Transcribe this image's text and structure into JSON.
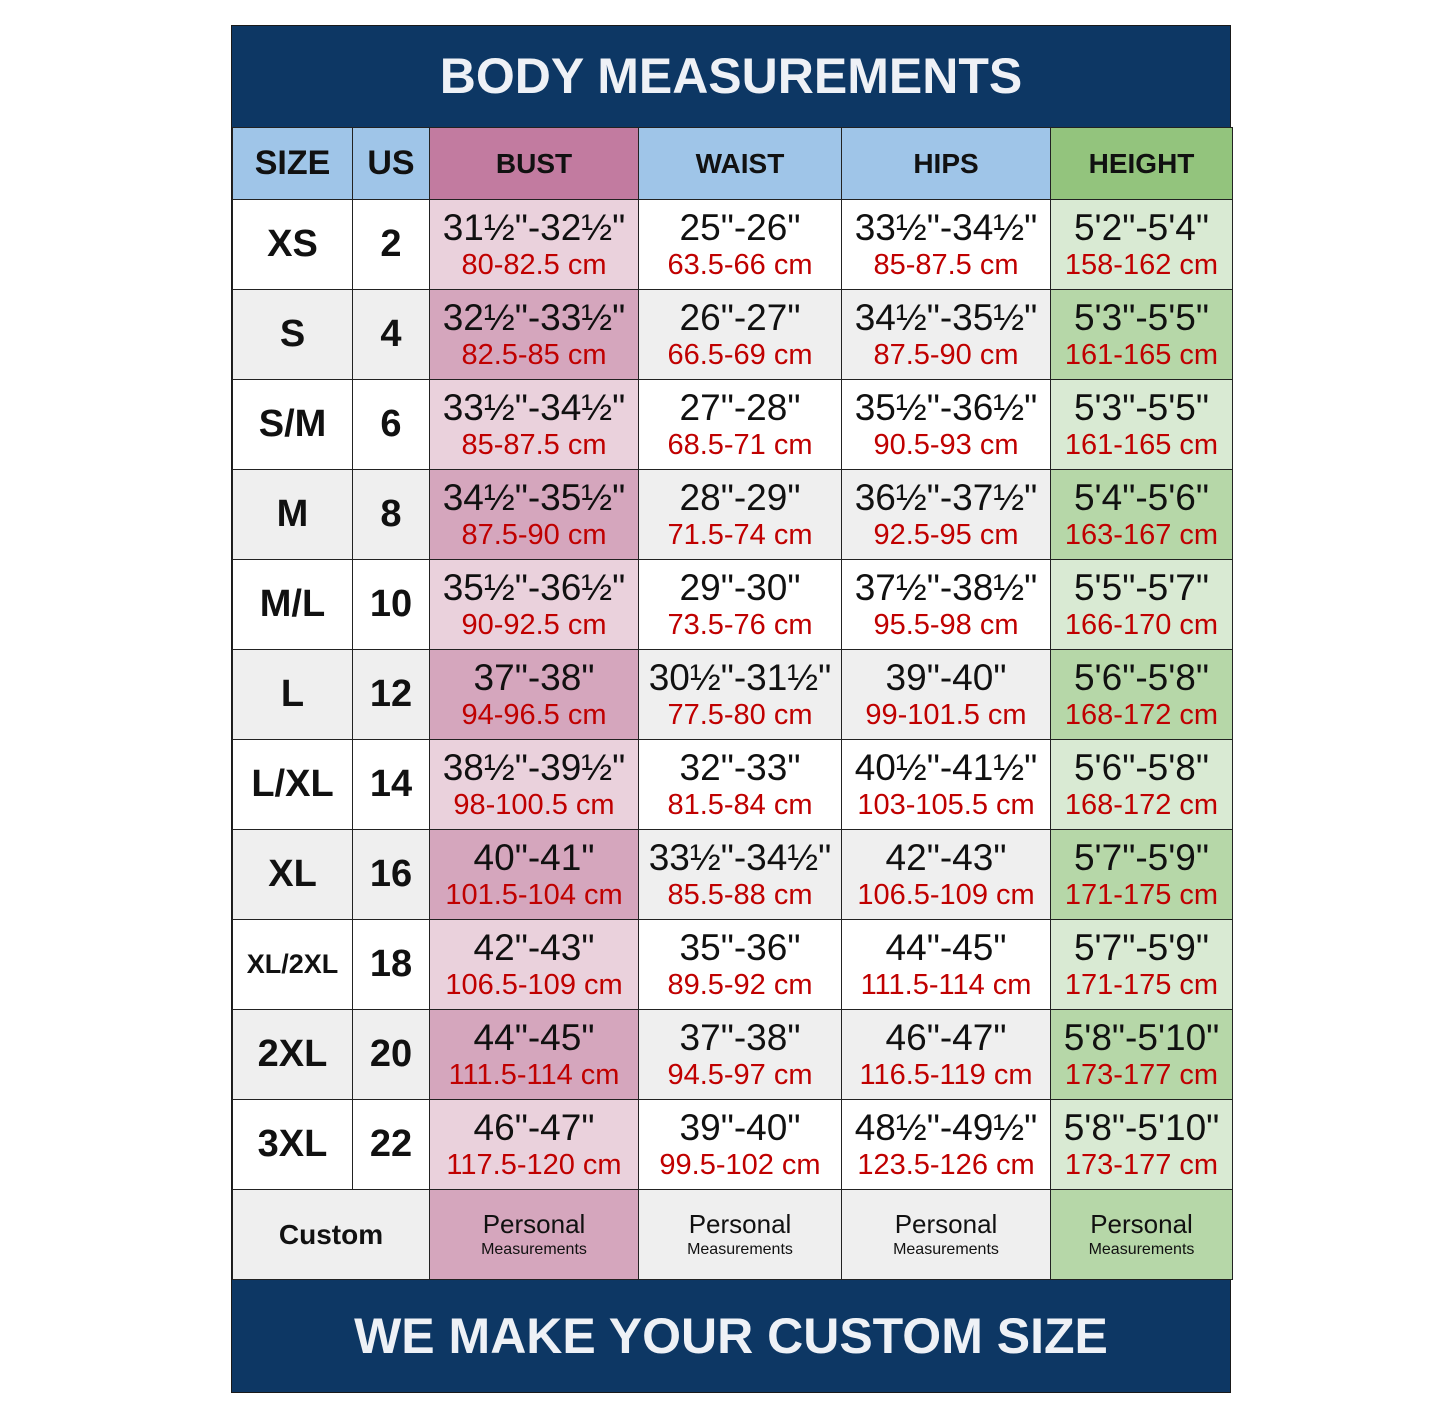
{
  "title": "BODY MEASUREMENTS",
  "footer": "WE MAKE YOUR CUSTOM SIZE",
  "colors": {
    "navy": "#0d3764",
    "header_blue": "#9fc5e8",
    "bust_header": "#c27ba0",
    "bust_light": "#ead1dc",
    "bust_dark": "#d5a6bd",
    "height_header": "#93c47d",
    "height_light": "#d9ead3",
    "height_dark": "#b6d7a8",
    "row_grey": "#efefef",
    "cm_text": "#c00000"
  },
  "headers": [
    "SIZE",
    "US",
    "BUST",
    "WAIST",
    "HIPS",
    "HEIGHT"
  ],
  "rows": [
    {
      "size": "XS",
      "us": "2",
      "bust": [
        "31½\"-32½\"",
        "80-82.5 cm"
      ],
      "waist": [
        "25\"-26\"",
        "63.5-66 cm"
      ],
      "hips": [
        "33½\"-34½\"",
        "85-87.5 cm"
      ],
      "height": [
        "5'2\"-5'4\"",
        "158-162 cm"
      ]
    },
    {
      "size": "S",
      "us": "4",
      "bust": [
        "32½\"-33½\"",
        "82.5-85 cm"
      ],
      "waist": [
        "26\"-27\"",
        "66.5-69 cm"
      ],
      "hips": [
        "34½\"-35½\"",
        "87.5-90 cm"
      ],
      "height": [
        "5'3\"-5'5\"",
        "161-165 cm"
      ]
    },
    {
      "size": "S/M",
      "us": "6",
      "bust": [
        "33½\"-34½\"",
        "85-87.5 cm"
      ],
      "waist": [
        "27\"-28\"",
        "68.5-71 cm"
      ],
      "hips": [
        "35½\"-36½\"",
        "90.5-93 cm"
      ],
      "height": [
        "5'3\"-5'5\"",
        "161-165 cm"
      ]
    },
    {
      "size": "M",
      "us": "8",
      "bust": [
        "34½\"-35½\"",
        "87.5-90 cm"
      ],
      "waist": [
        "28\"-29\"",
        "71.5-74 cm"
      ],
      "hips": [
        "36½\"-37½\"",
        "92.5-95 cm"
      ],
      "height": [
        "5'4\"-5'6\"",
        "163-167 cm"
      ]
    },
    {
      "size": "M/L",
      "us": "10",
      "bust": [
        "35½\"-36½\"",
        "90-92.5 cm"
      ],
      "waist": [
        "29\"-30\"",
        "73.5-76 cm"
      ],
      "hips": [
        "37½\"-38½\"",
        "95.5-98 cm"
      ],
      "height": [
        "5'5\"-5'7\"",
        "166-170 cm"
      ]
    },
    {
      "size": "L",
      "us": "12",
      "bust": [
        "37\"-38\"",
        "94-96.5 cm"
      ],
      "waist": [
        "30½\"-31½\"",
        "77.5-80 cm"
      ],
      "hips": [
        "39\"-40\"",
        "99-101.5 cm"
      ],
      "height": [
        "5'6\"-5'8\"",
        "168-172 cm"
      ]
    },
    {
      "size": "L/XL",
      "us": "14",
      "bust": [
        "38½\"-39½\"",
        "98-100.5 cm"
      ],
      "waist": [
        "32\"-33\"",
        "81.5-84 cm"
      ],
      "hips": [
        "40½\"-41½\"",
        "103-105.5 cm"
      ],
      "height": [
        "5'6\"-5'8\"",
        "168-172 cm"
      ]
    },
    {
      "size": "XL",
      "us": "16",
      "bust": [
        "40\"-41\"",
        "101.5-104 cm"
      ],
      "waist": [
        "33½\"-34½\"",
        "85.5-88 cm"
      ],
      "hips": [
        "42\"-43\"",
        "106.5-109 cm"
      ],
      "height": [
        "5'7\"-5'9\"",
        "171-175 cm"
      ]
    },
    {
      "size": "XL/2XL",
      "us": "18",
      "bust": [
        "42\"-43\"",
        "106.5-109 cm"
      ],
      "waist": [
        "35\"-36\"",
        "89.5-92 cm"
      ],
      "hips": [
        "44\"-45\"",
        "111.5-114 cm"
      ],
      "height": [
        "5'7\"-5'9\"",
        "171-175 cm"
      ]
    },
    {
      "size": "2XL",
      "us": "20",
      "bust": [
        "44\"-45\"",
        "111.5-114 cm"
      ],
      "waist": [
        "37\"-38\"",
        "94.5-97 cm"
      ],
      "hips": [
        "46\"-47\"",
        "116.5-119 cm"
      ],
      "height": [
        "5'8\"-5'10\"",
        "173-177 cm"
      ]
    },
    {
      "size": "3XL",
      "us": "22",
      "bust": [
        "46\"-47\"",
        "117.5-120 cm"
      ],
      "waist": [
        "39\"-40\"",
        "99.5-102 cm"
      ],
      "hips": [
        "48½\"-49½\"",
        "123.5-126 cm"
      ],
      "height": [
        "5'8\"-5'10\"",
        "173-177 cm"
      ]
    }
  ],
  "custom": {
    "label": "Custom",
    "line1": "Personal",
    "line2": "Measurements"
  }
}
